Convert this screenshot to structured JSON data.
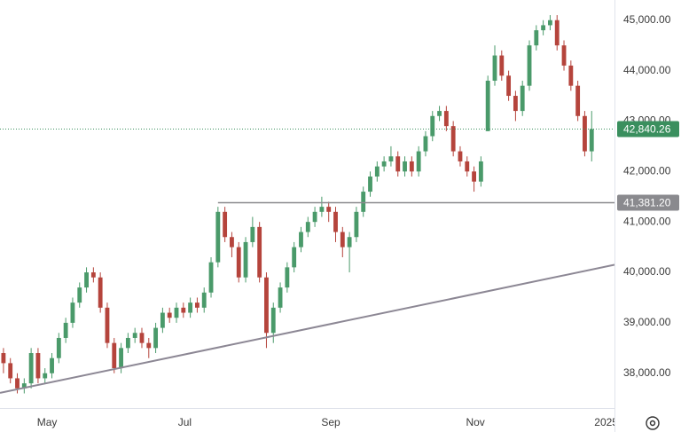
{
  "chart_data": {
    "type": "candlestick",
    "up_color": "#4a9a6a",
    "down_color": "#b5443c",
    "xlim": [
      -0.5,
      88.3
    ],
    "xticks": [
      {
        "value": 6.3,
        "label": "May"
      },
      {
        "value": 26.2,
        "label": "Jul"
      },
      {
        "value": 47.3,
        "label": "Sep"
      },
      {
        "value": 68.2,
        "label": "Nov"
      },
      {
        "value": 87.1,
        "label": "2025"
      }
    ],
    "ylim": [
      37310,
      45400
    ],
    "yticks": [
      {
        "value": 38000,
        "label": "38,000.00"
      },
      {
        "value": 39000,
        "label": "39,000.00"
      },
      {
        "value": 40000,
        "label": "40,000.00"
      },
      {
        "value": 41000,
        "label": "41,000.00"
      },
      {
        "value": 42000,
        "label": "42,000.00"
      },
      {
        "value": 43000,
        "label": "43,000.00"
      },
      {
        "value": 44000,
        "label": "44,000.00"
      },
      {
        "value": 45000,
        "label": "45,000.00"
      }
    ],
    "open": [
      38400,
      38200,
      37900,
      37700,
      37800,
      38400,
      37900,
      38000,
      38300,
      38700,
      39000,
      39400,
      39700,
      40000,
      39900,
      39300,
      38600,
      38100,
      38500,
      38700,
      38800,
      38600,
      38500,
      38900,
      39200,
      39100,
      39300,
      39200,
      39400,
      39300,
      39600,
      40200,
      41200,
      40700,
      40500,
      39900,
      40600,
      40900,
      39900,
      38800,
      39300,
      39700,
      40100,
      40500,
      40800,
      41000,
      41200,
      41300,
      41200,
      40800,
      40500,
      40700,
      41200,
      41600,
      41900,
      42100,
      42200,
      42300,
      42000,
      42200,
      42000,
      42400,
      42700,
      43100,
      43200,
      42900,
      42400,
      42200,
      42000,
      41800,
      42800,
      43800,
      44300,
      43900,
      43500,
      43200,
      43700,
      44500,
      44800,
      44900,
      45000,
      44500,
      44100,
      43700,
      43100,
      42400
    ],
    "high": [
      38500,
      38300,
      38000,
      37900,
      38500,
      38500,
      38100,
      38400,
      38800,
      39100,
      39500,
      39800,
      40100,
      40100,
      40000,
      39400,
      38700,
      38600,
      38800,
      38900,
      38900,
      38700,
      39000,
      39300,
      39300,
      39400,
      39400,
      39500,
      39500,
      39700,
      40300,
      41300,
      41300,
      40800,
      40600,
      40700,
      41100,
      41000,
      40000,
      39400,
      39800,
      40200,
      40600,
      40900,
      41100,
      41300,
      41500,
      41400,
      41300,
      40900,
      40800,
      41300,
      41700,
      42000,
      42200,
      42300,
      42500,
      42400,
      42300,
      42300,
      42500,
      42800,
      43200,
      43300,
      43300,
      43000,
      42500,
      42300,
      42100,
      42300,
      43900,
      44500,
      44400,
      44000,
      43600,
      43800,
      44600,
      44900,
      45000,
      45100,
      45100,
      44600,
      44200,
      43800,
      43200,
      43200
    ],
    "low": [
      38000,
      37800,
      37600,
      37600,
      37700,
      37800,
      37800,
      37900,
      38200,
      38600,
      38900,
      39300,
      39600,
      39800,
      39200,
      38500,
      38000,
      38000,
      38400,
      38600,
      38500,
      38300,
      38400,
      38800,
      39000,
      39000,
      39100,
      39100,
      39200,
      39200,
      39500,
      40100,
      40600,
      40300,
      39800,
      39800,
      40500,
      39800,
      38500,
      38600,
      39200,
      39600,
      40000,
      40400,
      40700,
      40900,
      41100,
      41000,
      40600,
      40300,
      40000,
      40600,
      41100,
      41500,
      41800,
      42000,
      42100,
      41900,
      41900,
      41900,
      41900,
      42300,
      42600,
      43000,
      42800,
      42300,
      42100,
      41900,
      41600,
      41700,
      42800,
      43700,
      43800,
      43400,
      43000,
      43100,
      43600,
      44400,
      44700,
      44800,
      44400,
      44000,
      43600,
      43000,
      42300,
      42200
    ],
    "close": [
      38200,
      37900,
      37700,
      37800,
      38400,
      37900,
      38000,
      38300,
      38700,
      39000,
      39400,
      39700,
      40000,
      39900,
      39300,
      38600,
      38100,
      38500,
      38700,
      38800,
      38600,
      38500,
      38900,
      39200,
      39100,
      39300,
      39200,
      39400,
      39300,
      39600,
      40200,
      41200,
      40700,
      40500,
      39900,
      40600,
      40900,
      39900,
      38800,
      39300,
      39700,
      40100,
      40500,
      40800,
      41000,
      41200,
      41300,
      41200,
      40800,
      40500,
      40700,
      41200,
      41600,
      41900,
      42100,
      42200,
      42300,
      42000,
      42200,
      42000,
      42400,
      42700,
      43100,
      43200,
      42900,
      42400,
      42200,
      42000,
      41800,
      42200,
      43800,
      44300,
      43900,
      43500,
      43200,
      43700,
      44500,
      44800,
      44900,
      45000,
      44500,
      44100,
      43700,
      43100,
      42400,
      42840.26
    ],
    "last_price": {
      "value": 42840.26,
      "label": "42,840.26",
      "color": "#3a8f5e"
    },
    "level_line": {
      "value": 41381.2,
      "label": "41,381.20",
      "start": 31,
      "color": "#8a8a8e"
    },
    "trendline": {
      "x": [
        -0.5,
        88.3
      ],
      "y": [
        37610,
        40150
      ],
      "color": "#8c8794"
    }
  }
}
